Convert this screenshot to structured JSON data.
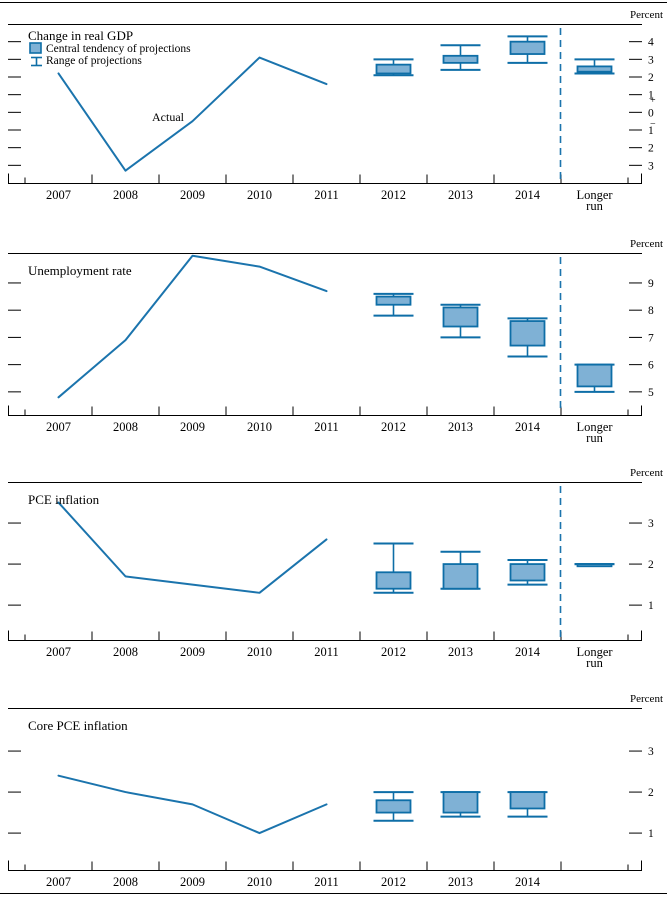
{
  "page": {
    "unit_label": "Percent"
  },
  "colors": {
    "line": "#1b74ad",
    "box_fill": "#7fb1d5",
    "box_border": "#0e6ea7",
    "divider": "#1b74ad",
    "axis": "#000000",
    "text": "#000000"
  },
  "legend": {
    "central_tendency": "Central tendency of projections",
    "range": "Range of projections"
  },
  "chart_data": [
    {
      "type": "line+boxrange",
      "title": "Change in real GDP",
      "unit": "Percent",
      "x_years": [
        "2007",
        "2008",
        "2009",
        "2010",
        "2011",
        "2012",
        "2013",
        "2014"
      ],
      "longer_run_label": [
        "Longer",
        "run"
      ],
      "actual": {
        "years": [
          2007,
          2008,
          2009,
          2010,
          2011
        ],
        "values": [
          2.2,
          -3.3,
          -0.5,
          3.1,
          1.6
        ]
      },
      "annotation": {
        "label": "Actual",
        "x": 168,
        "y": 121
      },
      "projections": [
        {
          "period": "2012",
          "central_tendency": [
            2.2,
            2.7
          ],
          "range": [
            2.1,
            3.0
          ]
        },
        {
          "period": "2013",
          "central_tendency": [
            2.8,
            3.2
          ],
          "range": [
            2.4,
            3.8
          ]
        },
        {
          "period": "2014",
          "central_tendency": [
            3.3,
            4.0
          ],
          "range": [
            2.8,
            4.3
          ]
        },
        {
          "period": "Longer run",
          "central_tendency": [
            2.3,
            2.6
          ],
          "range": [
            2.2,
            3.0
          ]
        }
      ],
      "ylim": [
        -4.0,
        5.0
      ],
      "yticks": [
        {
          "v": 4,
          "label": "4"
        },
        {
          "v": 3,
          "label": "3"
        },
        {
          "v": 2,
          "label": "2"
        },
        {
          "v": 1,
          "label": "1"
        },
        {
          "v": 0.72,
          "label": "+",
          "sign": true
        },
        {
          "v": 0,
          "label": "0"
        },
        {
          "v": -0.62,
          "label": "−",
          "sign": true
        },
        {
          "v": -1,
          "label": "1"
        },
        {
          "v": -2,
          "label": "2"
        },
        {
          "v": -3,
          "label": "3"
        }
      ],
      "divider": true,
      "show_legend": true
    },
    {
      "type": "line+boxrange",
      "title": "Unemployment rate",
      "unit": "Percent",
      "x_years": [
        "2007",
        "2008",
        "2009",
        "2010",
        "2011",
        "2012",
        "2013",
        "2014"
      ],
      "longer_run_label": [
        "Longer",
        "run"
      ],
      "actual": {
        "years": [
          2007,
          2008,
          2009,
          2010,
          2011
        ],
        "values": [
          4.8,
          6.9,
          10.0,
          9.6,
          8.7
        ]
      },
      "projections": [
        {
          "period": "2012",
          "central_tendency": [
            8.2,
            8.5
          ],
          "range": [
            7.8,
            8.6
          ]
        },
        {
          "period": "2013",
          "central_tendency": [
            7.4,
            8.1
          ],
          "range": [
            7.0,
            8.2
          ]
        },
        {
          "period": "2014",
          "central_tendency": [
            6.7,
            7.6
          ],
          "range": [
            6.3,
            7.7
          ]
        },
        {
          "period": "Longer run",
          "central_tendency": [
            5.2,
            6.0
          ],
          "range": [
            5.0,
            6.0
          ]
        }
      ],
      "ylim": [
        4.15,
        10.1
      ],
      "yticks": [
        {
          "v": 9,
          "label": "9"
        },
        {
          "v": 8,
          "label": "8"
        },
        {
          "v": 7,
          "label": "7"
        },
        {
          "v": 6,
          "label": "6"
        },
        {
          "v": 5,
          "label": "5"
        }
      ],
      "divider": true,
      "show_legend": false
    },
    {
      "type": "line+boxrange",
      "title": "PCE inflation",
      "unit": "Percent",
      "x_years": [
        "2007",
        "2008",
        "2009",
        "2010",
        "2011",
        "2012",
        "2013",
        "2014"
      ],
      "longer_run_label": [
        "Longer",
        "run"
      ],
      "actual": {
        "years": [
          2007,
          2008,
          2009,
          2010,
          2011
        ],
        "values": [
          3.5,
          1.7,
          1.5,
          1.3,
          2.6
        ]
      },
      "projections": [
        {
          "period": "2012",
          "central_tendency": [
            1.4,
            1.8
          ],
          "range": [
            1.3,
            2.5
          ]
        },
        {
          "period": "2013",
          "central_tendency": [
            1.4,
            2.0
          ],
          "range": [
            1.4,
            2.3
          ]
        },
        {
          "period": "2014",
          "central_tendency": [
            1.6,
            2.0
          ],
          "range": [
            1.5,
            2.1
          ]
        },
        {
          "period": "Longer run",
          "central_tendency": [
            2.0,
            2.0
          ],
          "range": [
            2.0,
            2.0
          ]
        }
      ],
      "ylim": [
        0.15,
        4.0
      ],
      "yticks": [
        {
          "v": 3,
          "label": "3"
        },
        {
          "v": 2,
          "label": "2"
        },
        {
          "v": 1,
          "label": "1"
        }
      ],
      "divider": true,
      "show_legend": false
    },
    {
      "type": "line+boxrange",
      "title": "Core PCE inflation",
      "unit": "Percent",
      "x_years": [
        "2007",
        "2008",
        "2009",
        "2010",
        "2011",
        "2012",
        "2013",
        "2014"
      ],
      "longer_run_label": null,
      "actual": {
        "years": [
          2007,
          2008,
          2009,
          2010,
          2011
        ],
        "values": [
          2.4,
          2.0,
          1.7,
          1.0,
          1.7
        ]
      },
      "projections": [
        {
          "period": "2012",
          "central_tendency": [
            1.5,
            1.8
          ],
          "range": [
            1.3,
            2.0
          ]
        },
        {
          "period": "2013",
          "central_tendency": [
            1.5,
            2.0
          ],
          "range": [
            1.4,
            2.0
          ]
        },
        {
          "period": "2014",
          "central_tendency": [
            1.6,
            2.0
          ],
          "range": [
            1.4,
            2.0
          ]
        }
      ],
      "ylim": [
        0.1,
        4.05
      ],
      "yticks": [
        {
          "v": 3,
          "label": "3"
        },
        {
          "v": 2,
          "label": "2"
        },
        {
          "v": 1,
          "label": "1"
        }
      ],
      "divider": false,
      "show_legend": false
    }
  ]
}
